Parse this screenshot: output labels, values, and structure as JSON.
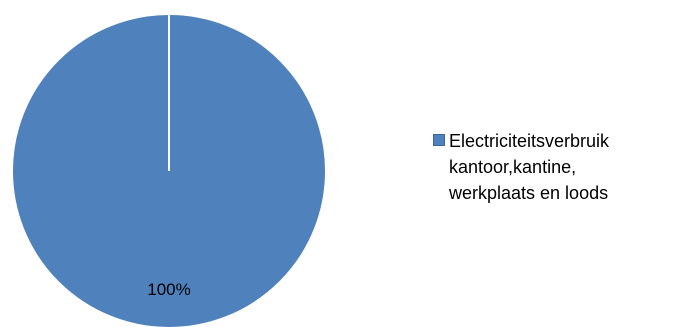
{
  "chart_data": {
    "type": "pie",
    "title": "",
    "slices": [
      {
        "label": "Electriciteitsverbruik\nkantoor,kantine,\nwerkplaats en loods",
        "value": 100,
        "data_label": "100%",
        "color": "#4f81bd"
      }
    ],
    "legend": {
      "position": "right"
    }
  }
}
